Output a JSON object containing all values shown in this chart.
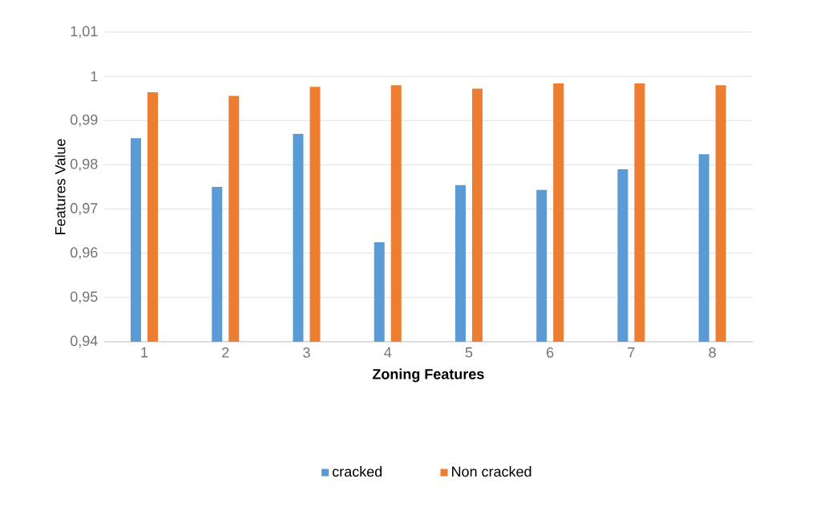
{
  "chart_data": {
    "type": "bar",
    "xlabel": "Zoning Features",
    "ylabel": "Features Value",
    "categories": [
      "1",
      "2",
      "3",
      "4",
      "5",
      "6",
      "7",
      "8"
    ],
    "series": [
      {
        "name": "cracked",
        "color": "#5b9bd5",
        "values": [
          0.986,
          0.975,
          0.987,
          0.9625,
          0.9754,
          0.9743,
          0.979,
          0.9824
        ]
      },
      {
        "name": "Non cracked",
        "color": "#ed7d31",
        "values": [
          0.9964,
          0.9956,
          0.9976,
          0.998,
          0.9972,
          0.9984,
          0.9984,
          0.998
        ]
      }
    ],
    "ylim": [
      0.94,
      1.01
    ],
    "yticks": [
      {
        "value": 0.94,
        "label": "0,94"
      },
      {
        "value": 0.95,
        "label": "0,95"
      },
      {
        "value": 0.96,
        "label": "0,96"
      },
      {
        "value": 0.97,
        "label": "0,97"
      },
      {
        "value": 0.98,
        "label": "0,98"
      },
      {
        "value": 0.99,
        "label": "0,99"
      },
      1,
      {
        "value": 1.01,
        "label": "1,01"
      }
    ],
    "grid": "y",
    "legend": "bottom"
  }
}
